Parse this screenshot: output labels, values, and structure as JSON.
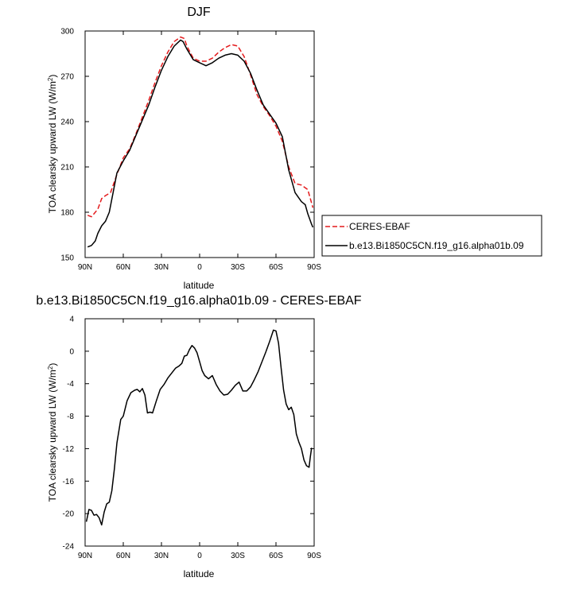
{
  "chart_data": [
    {
      "type": "line",
      "title": "DJF",
      "xlabel": "latitude",
      "ylabel": "TOA clearsky upward LW (W/m",
      "ylabel_sup": "2",
      "ylabel_close": ")",
      "xlim": [
        90,
        -90
      ],
      "ylim": [
        150,
        300
      ],
      "xticks": [
        {
          "v": 90,
          "label": "90N"
        },
        {
          "v": 60,
          "label": "60N"
        },
        {
          "v": 30,
          "label": "30N"
        },
        {
          "v": 0,
          "label": "0"
        },
        {
          "v": -30,
          "label": "30S"
        },
        {
          "v": -60,
          "label": "60S"
        },
        {
          "v": -90,
          "label": "90S"
        }
      ],
      "yticks": [
        150,
        180,
        210,
        240,
        270,
        300
      ],
      "legend": {
        "placement": "right"
      },
      "series": [
        {
          "name": "CERES-EBAF",
          "color": "#e41a1c",
          "dash": true,
          "x": [
            88,
            85,
            80,
            77,
            74,
            70,
            65,
            60,
            55,
            50,
            45,
            40,
            35,
            30,
            25,
            20,
            15,
            12,
            10,
            5,
            0,
            -5,
            -10,
            -15,
            -20,
            -25,
            -30,
            -35,
            -40,
            -45,
            -50,
            -55,
            -60,
            -65,
            -70,
            -75,
            -80,
            -85,
            -89
          ],
          "y": [
            178,
            177,
            182,
            189,
            191,
            193,
            205,
            216,
            222,
            232,
            243,
            254,
            266,
            277,
            286,
            293,
            296,
            295,
            290,
            282,
            280,
            280,
            282,
            286,
            289,
            291,
            290,
            283,
            271,
            258,
            250,
            244,
            237,
            227,
            210,
            199,
            198,
            195,
            183
          ]
        },
        {
          "name": "b.e13.Bi1850C5CN.f19_g16.alpha01b.09",
          "color": "#000000",
          "dash": false,
          "x": [
            88,
            85,
            82,
            80,
            77,
            74,
            71,
            68,
            65,
            60,
            55,
            50,
            45,
            40,
            35,
            30,
            25,
            20,
            15,
            13,
            10,
            5,
            0,
            -5,
            -10,
            -15,
            -20,
            -25,
            -30,
            -35,
            -40,
            -45,
            -50,
            -55,
            -60,
            -65,
            -70,
            -75,
            -80,
            -83,
            -85,
            -88,
            -89
          ],
          "y": [
            157,
            158,
            161,
            166,
            171,
            174,
            180,
            193,
            206,
            214,
            221,
            231,
            241,
            251,
            263,
            274,
            283,
            290,
            294,
            293,
            288,
            281,
            279,
            277,
            279,
            282,
            284,
            285,
            284,
            280,
            272,
            261,
            251,
            245,
            239,
            230,
            208,
            193,
            187,
            185,
            179,
            172,
            170
          ]
        }
      ]
    },
    {
      "type": "line",
      "title": "b.e13.Bi1850C5CN.f19_g16.alpha01b.09 - CERES-EBAF",
      "xlabel": "latitude",
      "ylabel": "TOA clearsky upward LW (W/m",
      "ylabel_sup": "2",
      "ylabel_close": ")",
      "xlim": [
        90,
        -90
      ],
      "ylim": [
        -24,
        4
      ],
      "xticks": [
        {
          "v": 90,
          "label": "90N"
        },
        {
          "v": 60,
          "label": "60N"
        },
        {
          "v": 30,
          "label": "30N"
        },
        {
          "v": 0,
          "label": "0"
        },
        {
          "v": -30,
          "label": "30S"
        },
        {
          "v": -60,
          "label": "60S"
        },
        {
          "v": -90,
          "label": "90S"
        }
      ],
      "yticks": [
        -24,
        -20,
        -16,
        -12,
        -8,
        -4,
        0,
        4
      ],
      "series": [
        {
          "color": "#000000",
          "dash": false,
          "x": [
            89,
            87,
            85,
            83,
            81,
            79,
            77,
            75,
            73,
            71,
            69,
            67,
            65,
            62,
            60,
            57,
            54,
            51,
            49,
            47,
            45,
            43,
            41,
            39,
            37,
            34,
            31,
            28,
            25,
            22,
            19,
            16,
            14,
            12,
            10,
            8,
            6,
            4,
            2,
            0,
            -2,
            -4,
            -7,
            -10,
            -13,
            -16,
            -19,
            -22,
            -25,
            -28,
            -31,
            -34,
            -37,
            -40,
            -43,
            -46,
            -49,
            -52,
            -55,
            -58,
            -60,
            -62,
            -64,
            -66,
            -68,
            -70,
            -72,
            -74,
            -76,
            -78,
            -80,
            -82,
            -84,
            -86,
            -87,
            -88
          ],
          "y": [
            -21,
            -19.5,
            -19.6,
            -20.2,
            -20.1,
            -20.5,
            -21.4,
            -19.8,
            -18.8,
            -18.6,
            -17.2,
            -14.5,
            -11.3,
            -8.4,
            -8.0,
            -6.1,
            -5.1,
            -4.8,
            -4.7,
            -5.0,
            -4.6,
            -5.4,
            -7.6,
            -7.5,
            -7.6,
            -6.1,
            -4.7,
            -4.1,
            -3.3,
            -2.7,
            -2.1,
            -1.8,
            -1.5,
            -0.6,
            -0.5,
            0.2,
            0.7,
            0.4,
            -0.2,
            -1.3,
            -2.4,
            -3.0,
            -3.4,
            -3.0,
            -4.1,
            -4.9,
            -5.4,
            -5.3,
            -4.8,
            -4.2,
            -3.8,
            -4.9,
            -4.9,
            -4.4,
            -3.5,
            -2.5,
            -1.3,
            -0.1,
            1.2,
            2.6,
            2.5,
            1.0,
            -2.0,
            -4.8,
            -6.5,
            -7.2,
            -6.9,
            -7.8,
            -10.2,
            -11.2,
            -12.0,
            -13.4,
            -14.1,
            -14.3,
            -13.0,
            -11.9
          ]
        }
      ]
    }
  ]
}
